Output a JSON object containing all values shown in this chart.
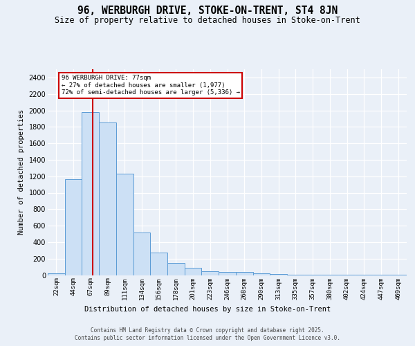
{
  "title": "96, WERBURGH DRIVE, STOKE-ON-TRENT, ST4 8JN",
  "subtitle": "Size of property relative to detached houses in Stoke-on-Trent",
  "xlabel": "Distribution of detached houses by size in Stoke-on-Trent",
  "ylabel": "Number of detached properties",
  "bin_labels": [
    "22sqm",
    "44sqm",
    "67sqm",
    "89sqm",
    "111sqm",
    "134sqm",
    "156sqm",
    "178sqm",
    "201sqm",
    "223sqm",
    "246sqm",
    "268sqm",
    "290sqm",
    "313sqm",
    "335sqm",
    "357sqm",
    "380sqm",
    "402sqm",
    "424sqm",
    "447sqm",
    "469sqm"
  ],
  "bar_heights": [
    25,
    1160,
    1980,
    1850,
    1230,
    520,
    275,
    150,
    90,
    45,
    40,
    35,
    20,
    10,
    8,
    5,
    4,
    3,
    2,
    2,
    2
  ],
  "bar_color": "#cce0f5",
  "bar_edge_color": "#5b9bd5",
  "red_line_x": 2.15,
  "annotation_text": "96 WERBURGH DRIVE: 77sqm\n← 27% of detached houses are smaller (1,977)\n72% of semi-detached houses are larger (5,336) →",
  "annotation_box_facecolor": "#ffffff",
  "annotation_box_edgecolor": "#cc0000",
  "red_line_color": "#cc0000",
  "ylim": [
    0,
    2500
  ],
  "yticks": [
    0,
    200,
    400,
    600,
    800,
    1000,
    1200,
    1400,
    1600,
    1800,
    2000,
    2200,
    2400
  ],
  "bg_color": "#eaf0f8",
  "grid_color": "#ffffff",
  "footer_line1": "Contains HM Land Registry data © Crown copyright and database right 2025.",
  "footer_line2": "Contains public sector information licensed under the Open Government Licence v3.0."
}
